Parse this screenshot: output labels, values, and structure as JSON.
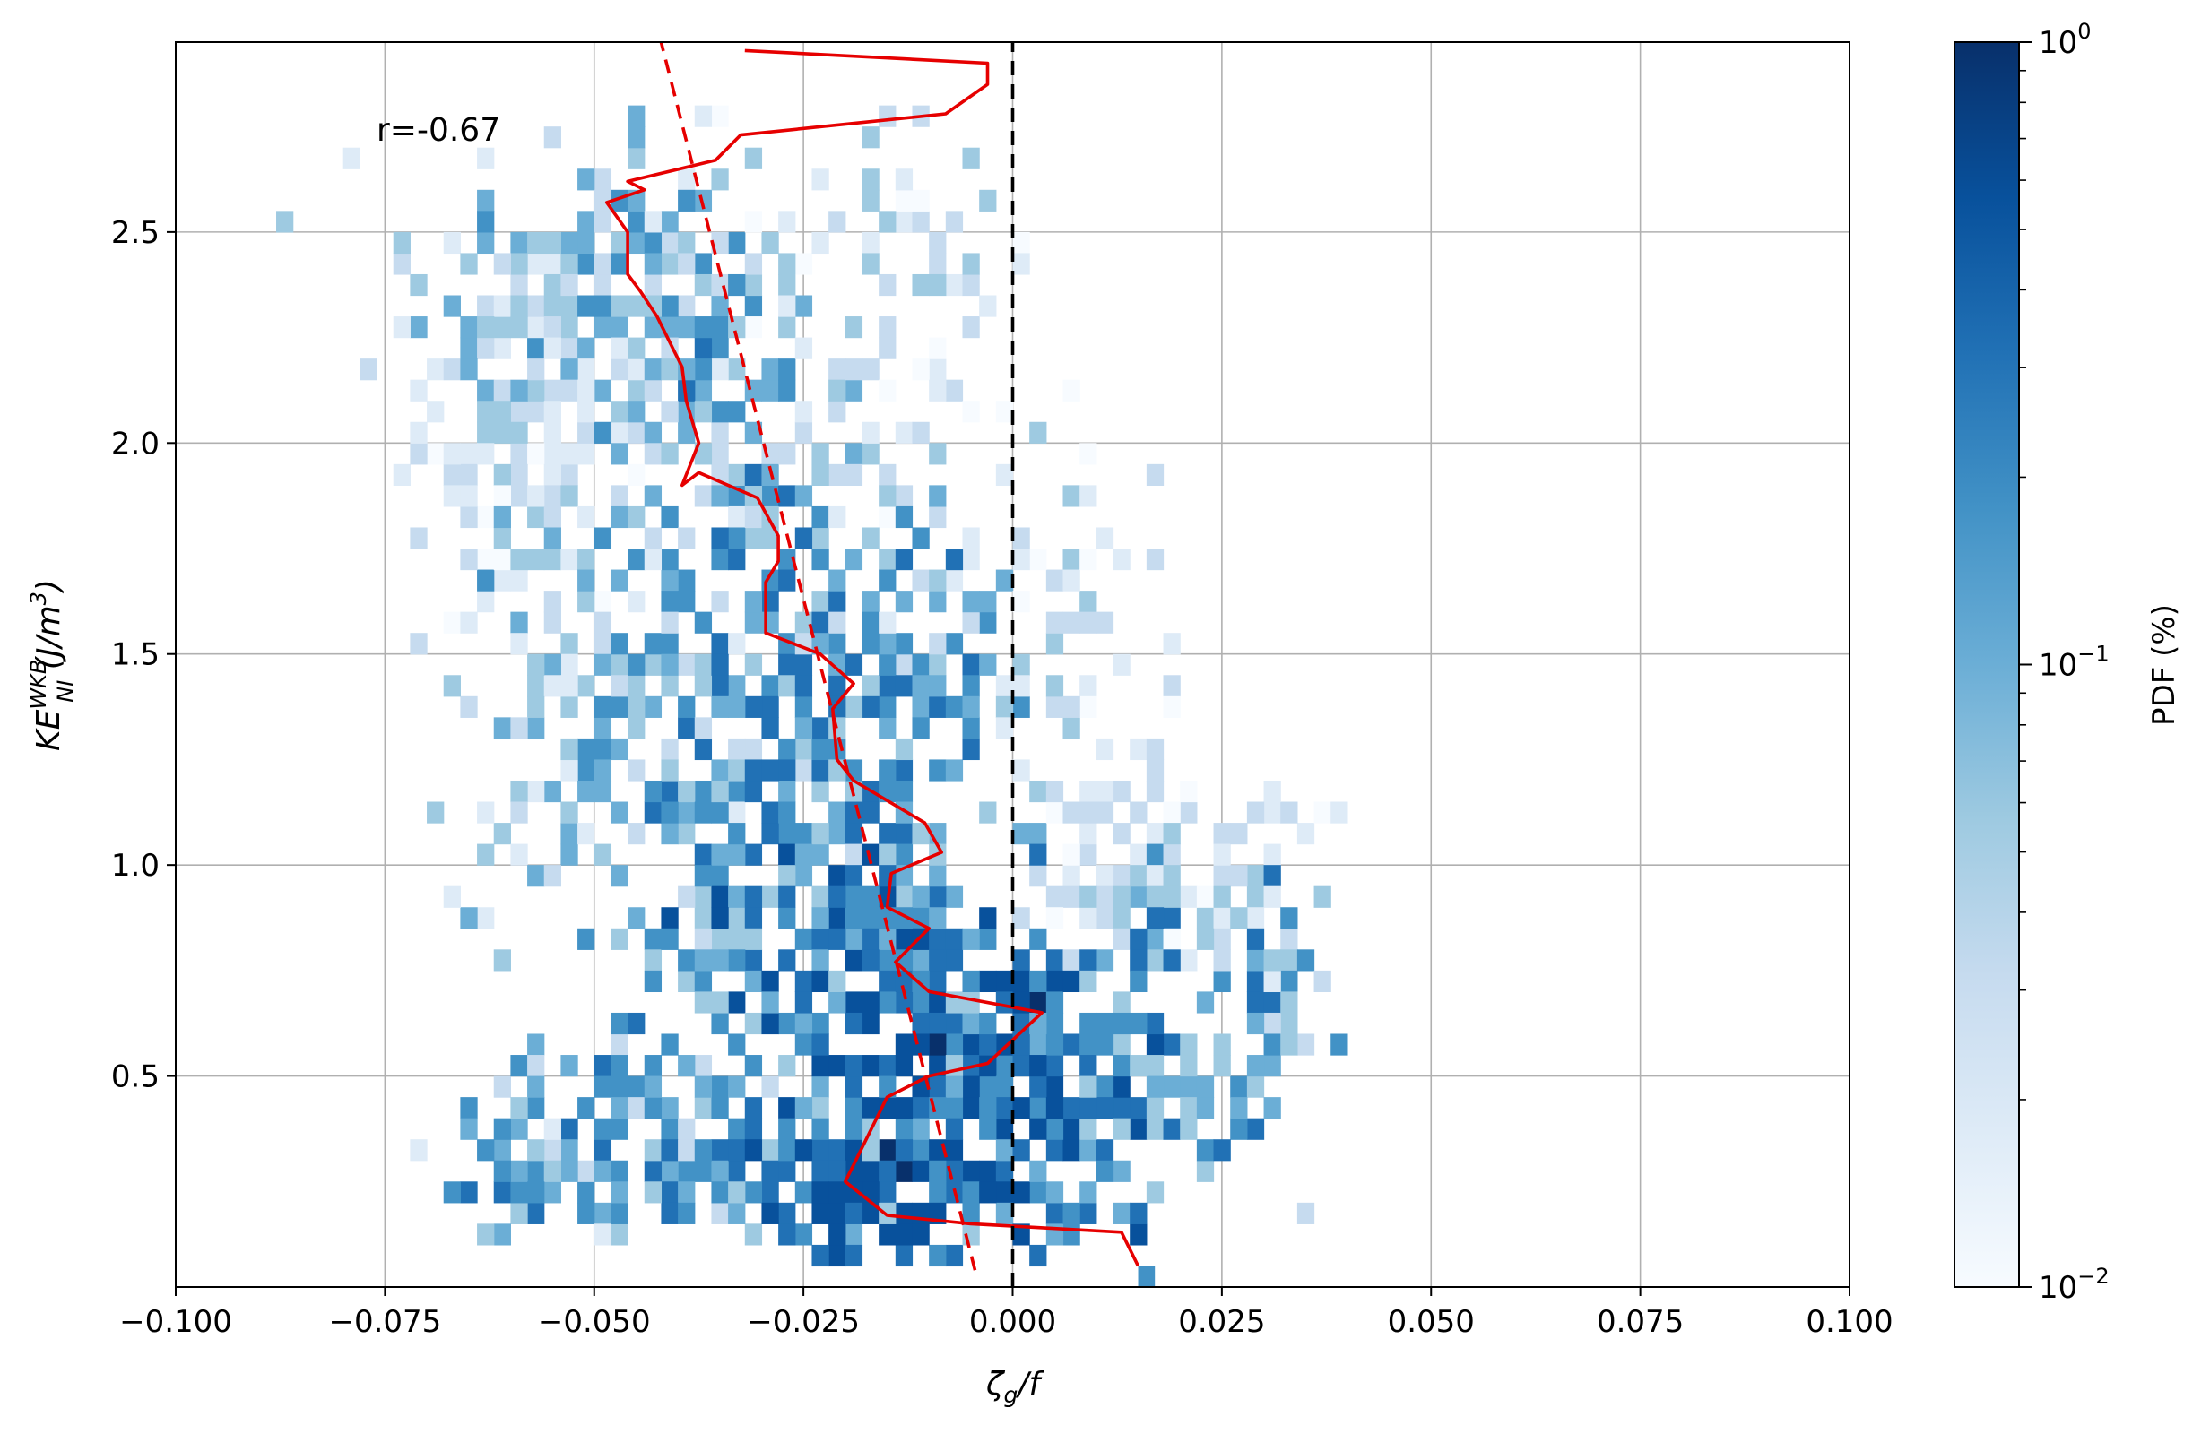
{
  "chart_data": {
    "type": "heatmap",
    "x_axis": {
      "label_main": "ζ",
      "label_sub": "g",
      "label_tail": "/f",
      "range": [
        -0.1,
        0.1
      ],
      "ticks": [
        -0.1,
        -0.075,
        -0.05,
        -0.025,
        0.0,
        0.025,
        0.05,
        0.075,
        0.1
      ],
      "tick_labels": [
        "−0.100",
        "−0.075",
        "−0.050",
        "−0.025",
        "0.000",
        "0.025",
        "0.050",
        "0.075",
        "0.100"
      ]
    },
    "y_axis": {
      "label_main": "KE",
      "label_sup": "WKB",
      "label_sub": "NI",
      "label_unit_open": " (J/m",
      "label_unit_sup": "3",
      "label_unit_close": ")",
      "range": [
        0.0,
        2.95
      ],
      "ticks": [
        0.5,
        1.0,
        1.5,
        2.0,
        2.5
      ],
      "tick_labels": [
        "0.5",
        "1.0",
        "1.5",
        "2.0",
        "2.5"
      ]
    },
    "grid": true,
    "annotation": "r=-0.67",
    "colorbar": {
      "label": "PDF (%)",
      "scale": "log",
      "range": [
        0.01,
        1.0
      ],
      "tick_base": "10",
      "tick_exponents": [
        "−2",
        "−1",
        "0"
      ],
      "colormap": "Blues",
      "colors": [
        "#f7fbff",
        "#deebf7",
        "#c6dbef",
        "#9ecae1",
        "#6baed6",
        "#4292c6",
        "#2171b5",
        "#08519c",
        "#08306b"
      ]
    },
    "bin_size": {
      "dx": 0.002,
      "dy": 0.05
    },
    "clusters": [
      {
        "x": -0.061,
        "y": 2.0,
        "sx": 0.006,
        "sy": 0.15,
        "n": 70,
        "lvl": [
          0.01,
          0.05
        ]
      },
      {
        "x": -0.058,
        "y": 1.75,
        "sx": 0.008,
        "sy": 0.15,
        "n": 40,
        "lvl": [
          0.01,
          0.05
        ]
      },
      {
        "x": -0.055,
        "y": 2.3,
        "sx": 0.009,
        "sy": 0.18,
        "n": 90,
        "lvl": [
          0.015,
          0.15
        ]
      },
      {
        "x": -0.05,
        "y": 2.45,
        "sx": 0.007,
        "sy": 0.12,
        "n": 50,
        "lvl": [
          0.02,
          0.2
        ]
      },
      {
        "x": -0.043,
        "y": 2.1,
        "sx": 0.008,
        "sy": 0.3,
        "n": 80,
        "lvl": [
          0.01,
          0.15
        ]
      },
      {
        "x": -0.035,
        "y": 1.95,
        "sx": 0.007,
        "sy": 0.3,
        "n": 90,
        "lvl": [
          0.02,
          0.3
        ]
      },
      {
        "x": -0.02,
        "y": 2.1,
        "sx": 0.008,
        "sy": 0.35,
        "n": 60,
        "lvl": [
          0.01,
          0.06
        ]
      },
      {
        "x": -0.01,
        "y": 2.45,
        "sx": 0.006,
        "sy": 0.3,
        "n": 40,
        "lvl": [
          0.01,
          0.06
        ]
      },
      {
        "x": -0.055,
        "y": 1.3,
        "sx": 0.006,
        "sy": 0.25,
        "n": 60,
        "lvl": [
          0.015,
          0.15
        ]
      },
      {
        "x": -0.045,
        "y": 1.35,
        "sx": 0.005,
        "sy": 0.2,
        "n": 40,
        "lvl": [
          0.02,
          0.2
        ]
      },
      {
        "x": -0.035,
        "y": 1.3,
        "sx": 0.007,
        "sy": 0.25,
        "n": 70,
        "lvl": [
          0.02,
          0.3
        ]
      },
      {
        "x": -0.025,
        "y": 1.45,
        "sx": 0.007,
        "sy": 0.3,
        "n": 90,
        "lvl": [
          0.03,
          0.4
        ]
      },
      {
        "x": -0.015,
        "y": 1.35,
        "sx": 0.006,
        "sy": 0.25,
        "n": 70,
        "lvl": [
          0.03,
          0.45
        ]
      },
      {
        "x": -0.006,
        "y": 1.45,
        "sx": 0.005,
        "sy": 0.2,
        "n": 40,
        "lvl": [
          0.02,
          0.25
        ]
      },
      {
        "x": 0.008,
        "y": 1.5,
        "sx": 0.005,
        "sy": 0.25,
        "n": 40,
        "lvl": [
          0.01,
          0.06
        ]
      },
      {
        "x": 0.012,
        "y": 1.05,
        "sx": 0.006,
        "sy": 0.15,
        "n": 60,
        "lvl": [
          0.01,
          0.04
        ]
      },
      {
        "x": 0.022,
        "y": 0.95,
        "sx": 0.007,
        "sy": 0.15,
        "n": 60,
        "lvl": [
          0.01,
          0.08
        ]
      },
      {
        "x": 0.03,
        "y": 0.6,
        "sx": 0.004,
        "sy": 0.18,
        "n": 50,
        "lvl": [
          0.02,
          0.3
        ]
      },
      {
        "x": -0.032,
        "y": 0.85,
        "sx": 0.007,
        "sy": 0.2,
        "n": 90,
        "lvl": [
          0.03,
          0.45
        ]
      },
      {
        "x": -0.02,
        "y": 0.8,
        "sx": 0.007,
        "sy": 0.2,
        "n": 110,
        "lvl": [
          0.04,
          0.55
        ]
      },
      {
        "x": -0.01,
        "y": 0.6,
        "sx": 0.006,
        "sy": 0.2,
        "n": 100,
        "lvl": [
          0.05,
          0.6
        ]
      },
      {
        "x": 0.003,
        "y": 0.5,
        "sx": 0.006,
        "sy": 0.2,
        "n": 120,
        "lvl": [
          0.06,
          0.8
        ]
      },
      {
        "x": 0.013,
        "y": 0.55,
        "sx": 0.006,
        "sy": 0.2,
        "n": 80,
        "lvl": [
          0.04,
          0.5
        ]
      },
      {
        "x": -0.05,
        "y": 0.35,
        "sx": 0.008,
        "sy": 0.1,
        "n": 80,
        "lvl": [
          0.02,
          0.3
        ]
      },
      {
        "x": -0.035,
        "y": 0.3,
        "sx": 0.007,
        "sy": 0.1,
        "n": 70,
        "lvl": [
          0.03,
          0.4
        ]
      },
      {
        "x": -0.02,
        "y": 0.25,
        "sx": 0.006,
        "sy": 0.1,
        "n": 90,
        "lvl": [
          0.05,
          0.7
        ]
      },
      {
        "x": -0.01,
        "y": 0.3,
        "sx": 0.006,
        "sy": 0.12,
        "n": 90,
        "lvl": [
          0.06,
          0.8
        ]
      },
      {
        "x": -0.06,
        "y": 0.28,
        "sx": 0.004,
        "sy": 0.08,
        "n": 25,
        "lvl": [
          0.05,
          0.3
        ]
      }
    ],
    "series": [
      {
        "style": "solid",
        "color": "#e60000",
        "x": [
          0.015,
          0.013,
          -0.005,
          -0.015,
          -0.02,
          -0.015,
          -0.01,
          -0.003,
          0.0035,
          -0.01,
          -0.014,
          -0.01,
          -0.015,
          -0.0145,
          -0.0085,
          -0.0105,
          -0.019,
          -0.021,
          -0.0215,
          -0.019,
          -0.023,
          -0.0295,
          -0.0295,
          -0.028,
          -0.028,
          -0.0305,
          -0.0375,
          -0.0395,
          -0.0375,
          -0.039,
          -0.0395,
          -0.0425,
          -0.0445,
          -0.046,
          -0.046,
          -0.046,
          -0.0485,
          -0.044,
          -0.046,
          -0.0355,
          -0.0325,
          -0.008,
          -0.003,
          -0.003,
          -0.032
        ],
        "y": [
          0.05,
          0.13,
          0.15,
          0.17,
          0.25,
          0.45,
          0.5,
          0.53,
          0.65,
          0.7,
          0.77,
          0.85,
          0.9,
          0.98,
          1.03,
          1.1,
          1.2,
          1.25,
          1.37,
          1.43,
          1.5,
          1.55,
          1.67,
          1.72,
          1.78,
          1.87,
          1.93,
          1.9,
          2.0,
          2.1,
          2.18,
          2.3,
          2.36,
          2.4,
          2.47,
          2.5,
          2.57,
          2.6,
          2.62,
          2.67,
          2.73,
          2.78,
          2.85,
          2.9,
          2.93
        ]
      },
      {
        "style": "dashed",
        "color": "#e60000",
        "x": [
          -0.0045,
          -0.042
        ],
        "y": [
          0.04,
          2.95
        ]
      },
      {
        "style": "dashed",
        "color": "#000000",
        "x": [
          0.0,
          0.0
        ],
        "y": [
          0.0,
          2.95
        ]
      }
    ]
  }
}
